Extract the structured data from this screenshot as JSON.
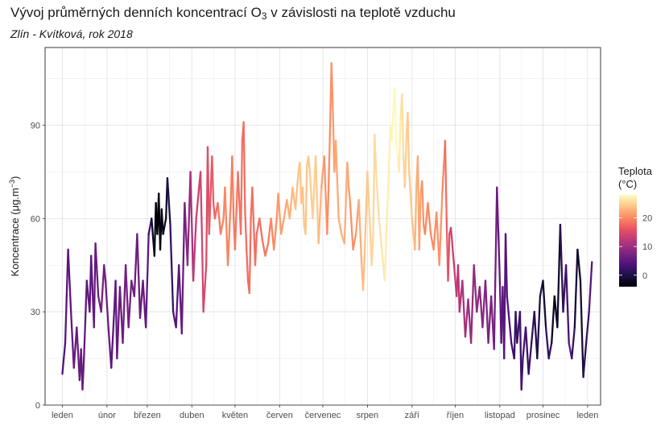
{
  "chart_data": {
    "type": "line",
    "title_main": "Vývoj průměrných denních koncentrací O",
    "title_sub": "3",
    "title_rest": " v závislosti na teplotě vzduchu",
    "subtitle": "Zlín - Kvítková, rok 2018",
    "ylabel_main": "Koncentrace (μg.m",
    "ylabel_sup": "−3",
    "ylabel_end": ")",
    "ylim": [
      0,
      115
    ],
    "yticks": [
      0,
      30,
      60,
      90
    ],
    "xlim": [
      -12,
      374
    ],
    "xticks": [
      {
        "label": "leden",
        "day": 0
      },
      {
        "label": "únor",
        "day": 31
      },
      {
        "label": "březen",
        "day": 59
      },
      {
        "label": "duben",
        "day": 90
      },
      {
        "label": "květen",
        "day": 120
      },
      {
        "label": "červen",
        "day": 151
      },
      {
        "label": "červenec",
        "day": 181
      },
      {
        "label": "srpen",
        "day": 212
      },
      {
        "label": "září",
        "day": 243
      },
      {
        "label": "říjen",
        "day": 273
      },
      {
        "label": "listopad",
        "day": 304
      },
      {
        "label": "prosinec",
        "day": 334
      },
      {
        "label": "leden",
        "day": 365
      }
    ],
    "grid": true,
    "legend": {
      "title_line1": "Teplota",
      "title_line2": "(°C)",
      "ticks": [
        0,
        10,
        20
      ],
      "min": -4,
      "max": 28,
      "placement": "right"
    },
    "colormap_stops": [
      "#000004",
      "#1d1147",
      "#51127c",
      "#822681",
      "#b73779",
      "#e75263",
      "#fc8961",
      "#fec488",
      "#fcfdbf"
    ],
    "anchors_concentration": [
      [
        0,
        10
      ],
      [
        2,
        20
      ],
      [
        4,
        50
      ],
      [
        6,
        30
      ],
      [
        8,
        12
      ],
      [
        10,
        25
      ],
      [
        12,
        8
      ],
      [
        13,
        18
      ],
      [
        14,
        5
      ],
      [
        15,
        15
      ],
      [
        17,
        40
      ],
      [
        19,
        30
      ],
      [
        20,
        48
      ],
      [
        22,
        25
      ],
      [
        23,
        52
      ],
      [
        25,
        35
      ],
      [
        27,
        30
      ],
      [
        29,
        45
      ],
      [
        30,
        40
      ],
      [
        32,
        25
      ],
      [
        34,
        12
      ],
      [
        36,
        30
      ],
      [
        37,
        40
      ],
      [
        38,
        15
      ],
      [
        40,
        38
      ],
      [
        42,
        20
      ],
      [
        44,
        45
      ],
      [
        46,
        25
      ],
      [
        48,
        40
      ],
      [
        50,
        35
      ],
      [
        52,
        55
      ],
      [
        54,
        28
      ],
      [
        56,
        40
      ],
      [
        58,
        25
      ],
      [
        60,
        55
      ],
      [
        62,
        60
      ],
      [
        64,
        48
      ],
      [
        65,
        65
      ],
      [
        66,
        55
      ],
      [
        67,
        68
      ],
      [
        68,
        50
      ],
      [
        69,
        63
      ],
      [
        70,
        55
      ],
      [
        72,
        60
      ],
      [
        73,
        73
      ],
      [
        75,
        58
      ],
      [
        77,
        30
      ],
      [
        79,
        25
      ],
      [
        81,
        45
      ],
      [
        83,
        23
      ],
      [
        85,
        65
      ],
      [
        87,
        45
      ],
      [
        89,
        75
      ],
      [
        91,
        40
      ],
      [
        93,
        60
      ],
      [
        95,
        70
      ],
      [
        96,
        75
      ],
      [
        97,
        55
      ],
      [
        98,
        30
      ],
      [
        100,
        45
      ],
      [
        101,
        83
      ],
      [
        102,
        55
      ],
      [
        104,
        80
      ],
      [
        105,
        65
      ],
      [
        106,
        60
      ],
      [
        108,
        65
      ],
      [
        110,
        55
      ],
      [
        112,
        60
      ],
      [
        113,
        70
      ],
      [
        115,
        45
      ],
      [
        117,
        65
      ],
      [
        118,
        80
      ],
      [
        119,
        60
      ],
      [
        120,
        50
      ],
      [
        122,
        75
      ],
      [
        124,
        55
      ],
      [
        125,
        85
      ],
      [
        126,
        91
      ],
      [
        127,
        62
      ],
      [
        128,
        50
      ],
      [
        129,
        40
      ],
      [
        130,
        36
      ],
      [
        131,
        60
      ],
      [
        132,
        70
      ],
      [
        134,
        45
      ],
      [
        135,
        55
      ],
      [
        137,
        60
      ],
      [
        139,
        53
      ],
      [
        141,
        48
      ],
      [
        143,
        52
      ],
      [
        145,
        60
      ],
      [
        147,
        50
      ],
      [
        149,
        60
      ],
      [
        150,
        68
      ],
      [
        152,
        55
      ],
      [
        154,
        60
      ],
      [
        156,
        66
      ],
      [
        158,
        60
      ],
      [
        160,
        70
      ],
      [
        162,
        63
      ],
      [
        164,
        75
      ],
      [
        165,
        78
      ],
      [
        166,
        65
      ],
      [
        167,
        70
      ],
      [
        168,
        58
      ],
      [
        169,
        55
      ],
      [
        170,
        77
      ],
      [
        171,
        80
      ],
      [
        172,
        75
      ],
      [
        174,
        60
      ],
      [
        176,
        80
      ],
      [
        178,
        52
      ],
      [
        180,
        70
      ],
      [
        182,
        80
      ],
      [
        184,
        55
      ],
      [
        185,
        70
      ],
      [
        186,
        88
      ],
      [
        187,
        110
      ],
      [
        188,
        95
      ],
      [
        189,
        75
      ],
      [
        190,
        85
      ],
      [
        192,
        60
      ],
      [
        194,
        55
      ],
      [
        196,
        52
      ],
      [
        198,
        78
      ],
      [
        199,
        70
      ],
      [
        200,
        65
      ],
      [
        202,
        50
      ],
      [
        204,
        55
      ],
      [
        206,
        66
      ],
      [
        208,
        45
      ],
      [
        209,
        37
      ],
      [
        210,
        48
      ],
      [
        212,
        75
      ],
      [
        213,
        65
      ],
      [
        215,
        45
      ],
      [
        216,
        55
      ],
      [
        217,
        87
      ],
      [
        218,
        75
      ],
      [
        220,
        60
      ],
      [
        222,
        50
      ],
      [
        224,
        40
      ],
      [
        226,
        65
      ],
      [
        227,
        78
      ],
      [
        228,
        90
      ],
      [
        229,
        85
      ],
      [
        230,
        95
      ],
      [
        231,
        102
      ],
      [
        232,
        85
      ],
      [
        233,
        80
      ],
      [
        234,
        75
      ],
      [
        235,
        92
      ],
      [
        236,
        100
      ],
      [
        237,
        80
      ],
      [
        238,
        70
      ],
      [
        239,
        85
      ],
      [
        240,
        94
      ],
      [
        241,
        75
      ],
      [
        243,
        60
      ],
      [
        245,
        50
      ],
      [
        246,
        70
      ],
      [
        247,
        80
      ],
      [
        248,
        50
      ],
      [
        249,
        68
      ],
      [
        250,
        72
      ],
      [
        251,
        58
      ],
      [
        252,
        55
      ],
      [
        254,
        65
      ],
      [
        256,
        55
      ],
      [
        258,
        50
      ],
      [
        260,
        62
      ],
      [
        262,
        45
      ],
      [
        264,
        68
      ],
      [
        266,
        85
      ],
      [
        267,
        60
      ],
      [
        268,
        40
      ],
      [
        269,
        55
      ],
      [
        270,
        57
      ],
      [
        272,
        46
      ],
      [
        274,
        35
      ],
      [
        275,
        45
      ],
      [
        276,
        30
      ],
      [
        278,
        40
      ],
      [
        280,
        22
      ],
      [
        282,
        34
      ],
      [
        284,
        20
      ],
      [
        286,
        45
      ],
      [
        288,
        30
      ],
      [
        290,
        38
      ],
      [
        292,
        25
      ],
      [
        294,
        40
      ],
      [
        296,
        20
      ],
      [
        298,
        35
      ],
      [
        300,
        18
      ],
      [
        302,
        70
      ],
      [
        303,
        55
      ],
      [
        304,
        40
      ],
      [
        305,
        20
      ],
      [
        306,
        38
      ],
      [
        307,
        15
      ],
      [
        308,
        55
      ],
      [
        309,
        35
      ],
      [
        310,
        30
      ],
      [
        312,
        20
      ],
      [
        314,
        15
      ],
      [
        315,
        30
      ],
      [
        316,
        20
      ],
      [
        318,
        30
      ],
      [
        319,
        5
      ],
      [
        320,
        15
      ],
      [
        322,
        25
      ],
      [
        324,
        10
      ],
      [
        326,
        20
      ],
      [
        328,
        30
      ],
      [
        330,
        15
      ],
      [
        332,
        35
      ],
      [
        334,
        40
      ],
      [
        336,
        25
      ],
      [
        338,
        15
      ],
      [
        340,
        20
      ],
      [
        342,
        35
      ],
      [
        344,
        25
      ],
      [
        346,
        58
      ],
      [
        348,
        30
      ],
      [
        350,
        45
      ],
      [
        352,
        20
      ],
      [
        354,
        15
      ],
      [
        356,
        25
      ],
      [
        358,
        50
      ],
      [
        360,
        40
      ],
      [
        362,
        9
      ],
      [
        364,
        20
      ],
      [
        366,
        30
      ],
      [
        368,
        46
      ]
    ],
    "anchors_temperature": [
      [
        0,
        4
      ],
      [
        10,
        6
      ],
      [
        20,
        5
      ],
      [
        28,
        7
      ],
      [
        35,
        5
      ],
      [
        45,
        7
      ],
      [
        55,
        6
      ],
      [
        60,
        5
      ],
      [
        62,
        -1
      ],
      [
        66,
        -4
      ],
      [
        69,
        -3
      ],
      [
        72,
        -2
      ],
      [
        74,
        0
      ],
      [
        78,
        4
      ],
      [
        84,
        6
      ],
      [
        88,
        9
      ],
      [
        92,
        13
      ],
      [
        100,
        15
      ],
      [
        105,
        17
      ],
      [
        112,
        20
      ],
      [
        120,
        19
      ],
      [
        126,
        18
      ],
      [
        130,
        18
      ],
      [
        136,
        18
      ],
      [
        143,
        19
      ],
      [
        150,
        21
      ],
      [
        155,
        22
      ],
      [
        164,
        24
      ],
      [
        170,
        24
      ],
      [
        176,
        25
      ],
      [
        182,
        21
      ],
      [
        186,
        20
      ],
      [
        190,
        22
      ],
      [
        196,
        23
      ],
      [
        202,
        20
      ],
      [
        208,
        23
      ],
      [
        214,
        25
      ],
      [
        220,
        26
      ],
      [
        226,
        27
      ],
      [
        232,
        28
      ],
      [
        238,
        25
      ],
      [
        243,
        24
      ],
      [
        248,
        22
      ],
      [
        252,
        20
      ],
      [
        258,
        20
      ],
      [
        264,
        21
      ],
      [
        270,
        14
      ],
      [
        276,
        12
      ],
      [
        282,
        10
      ],
      [
        288,
        9
      ],
      [
        294,
        8
      ],
      [
        300,
        7
      ],
      [
        305,
        5
      ],
      [
        310,
        4
      ],
      [
        315,
        2
      ],
      [
        320,
        3
      ],
      [
        326,
        2
      ],
      [
        331,
        0
      ],
      [
        335,
        -1
      ],
      [
        338,
        3
      ],
      [
        341,
        -2
      ],
      [
        344,
        -3
      ],
      [
        347,
        1
      ],
      [
        350,
        2
      ],
      [
        353,
        5
      ],
      [
        357,
        -1
      ],
      [
        360,
        -2
      ],
      [
        363,
        1
      ],
      [
        366,
        3
      ],
      [
        368,
        6
      ]
    ]
  }
}
